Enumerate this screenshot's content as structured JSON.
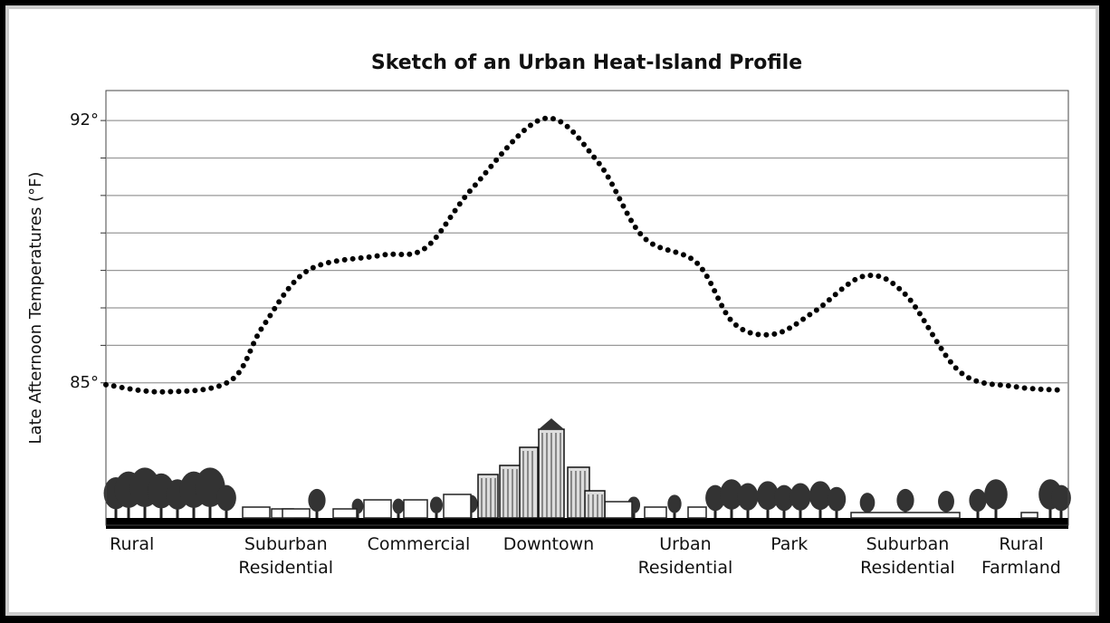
{
  "chart_data": {
    "type": "line",
    "title": "Sketch of an Urban Heat-Island Profile",
    "y_label": "Late Afternoon Temperatures (°F)",
    "x": [
      0,
      5.9,
      12.9,
      16.3,
      21.0,
      28.5,
      33.2,
      38.1,
      45.5,
      51.1,
      55.8,
      61.4,
      65.2,
      69.4,
      73.6,
      78.8,
      83.1,
      88.7,
      94.4,
      99.6
    ],
    "values": [
      84.95,
      84.76,
      85.05,
      86.5,
      88.0,
      88.4,
      88.6,
      90.2,
      92.05,
      90.9,
      88.9,
      88.2,
      86.6,
      86.3,
      86.9,
      87.85,
      87.35,
      85.3,
      84.9,
      84.8
    ],
    "color": "#000000",
    "xlim": [
      0,
      100
    ],
    "xticks": [
      {
        "value": 2.7,
        "label": "Rural"
      },
      {
        "value": 18.7,
        "label": "Suburban\nResidential"
      },
      {
        "value": 32.5,
        "label": "Commercial"
      },
      {
        "value": 46.0,
        "label": "Downtown"
      },
      {
        "value": 60.2,
        "label": "Urban\nResidential"
      },
      {
        "value": 71.0,
        "label": "Park"
      },
      {
        "value": 83.3,
        "label": "Suburban\nResidential"
      },
      {
        "value": 95.1,
        "label": "Rural\nFarmland"
      }
    ],
    "ylim": [
      81.2,
      92.8
    ],
    "yticks": [
      {
        "value": 85,
        "label": "85°"
      },
      {
        "value": 92,
        "label": "92°"
      }
    ],
    "minor_yticks": [
      86,
      87,
      88,
      89,
      90,
      91
    ],
    "grid": true
  }
}
